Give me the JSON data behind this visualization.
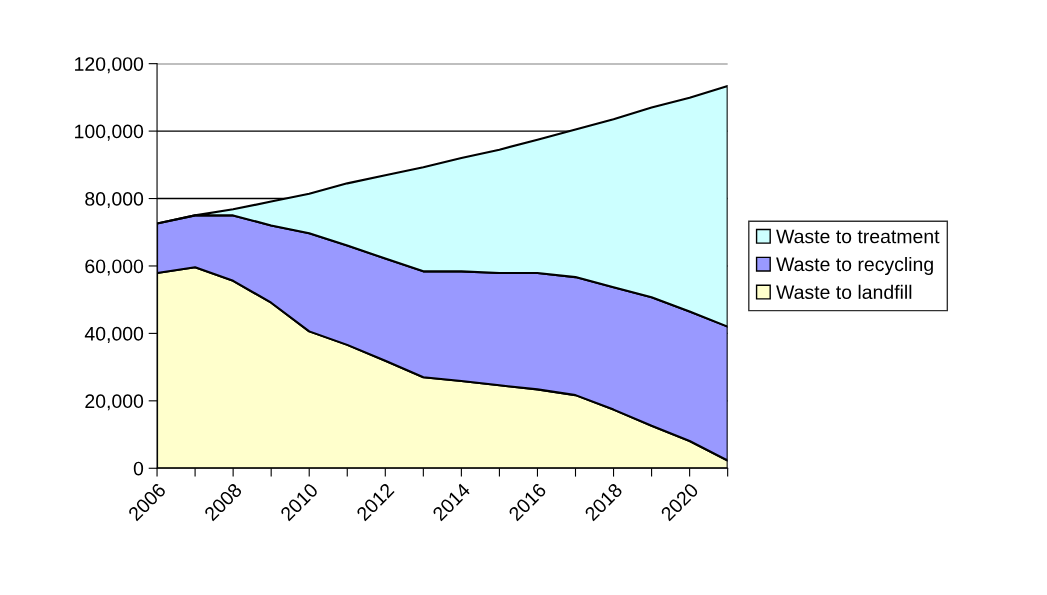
{
  "chart_data": {
    "type": "area",
    "stacked": true,
    "categories": [
      "2006",
      null,
      "2008",
      null,
      "2010",
      null,
      "2012",
      null,
      "2014",
      null,
      "2016",
      null,
      "2018",
      null,
      "2020",
      null
    ],
    "series": [
      {
        "name": "Waste to landfill",
        "color": "#ffffcc",
        "values": [
          57900,
          59600,
          55600,
          49100,
          40600,
          36600,
          31900,
          27000,
          25900,
          24600,
          23400,
          21700,
          17400,
          12600,
          8100,
          2300
        ]
      },
      {
        "name": "Waste to recycling",
        "color": "#9999ff",
        "values": [
          14700,
          15400,
          19400,
          22900,
          29100,
          29500,
          30300,
          31400,
          32500,
          33300,
          34500,
          35000,
          36300,
          38100,
          38400,
          39700
        ]
      },
      {
        "name": "Waste to treatment",
        "color": "#ccffff",
        "values": [
          0,
          0,
          1800,
          7100,
          11700,
          18400,
          24700,
          30900,
          33600,
          36600,
          39500,
          43800,
          49800,
          56300,
          63400,
          71400
        ]
      }
    ],
    "ylim": [
      0,
      120000
    ],
    "yticks": [
      {
        "value": 0,
        "label": "0"
      },
      {
        "value": 20000,
        "label": "20,000"
      },
      {
        "value": 40000,
        "label": "40,000"
      },
      {
        "value": 60000,
        "label": "60,000"
      },
      {
        "value": 80000,
        "label": "80,000"
      },
      {
        "value": 100000,
        "label": "100,000"
      },
      {
        "value": 120000,
        "label": "120,000"
      }
    ],
    "grid": "y",
    "legend": "right"
  }
}
